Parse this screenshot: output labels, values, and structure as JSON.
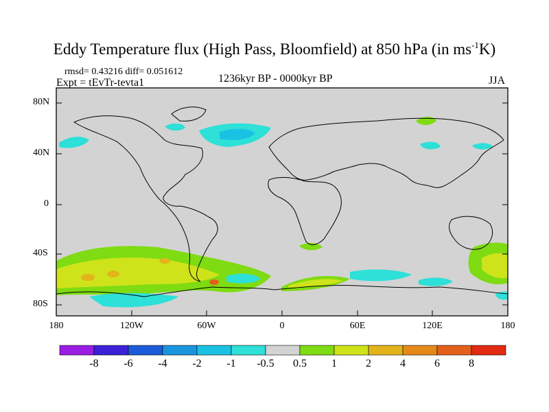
{
  "title": {
    "main": "Eddy Temperature flux (High Pass, Bloomfield) at 850 hPa (in ms",
    "superscript": "-1",
    "end": "K)"
  },
  "stats": "rmsd= 0.43216 diff= 0.051612",
  "expt": "Expt = tEvTr-tevta1",
  "period": "1236kyr BP - 0000kyr BP",
  "season": "JJA",
  "map": {
    "lat_labels": [
      "80N",
      "40N",
      "0",
      "40S",
      "80S"
    ],
    "lon_labels": [
      "180",
      "120W",
      "60W",
      "0",
      "60E",
      "120E",
      "180"
    ],
    "ocean_land_color": "#d3d3d3"
  },
  "colorbar": {
    "labels": [
      "-8",
      "-6",
      "-4",
      "-2",
      "-1",
      "-0.5",
      "0.5",
      "1",
      "2",
      "4",
      "6",
      "8"
    ],
    "colors": [
      "#9a1de3",
      "#3b22d8",
      "#1c5bd9",
      "#1b94de",
      "#19c2e3",
      "#2de0d8",
      "#d3d3d3",
      "#7fdb12",
      "#cfe31a",
      "#e3b41a",
      "#e38a1a",
      "#e3601a",
      "#e32a12"
    ]
  }
}
